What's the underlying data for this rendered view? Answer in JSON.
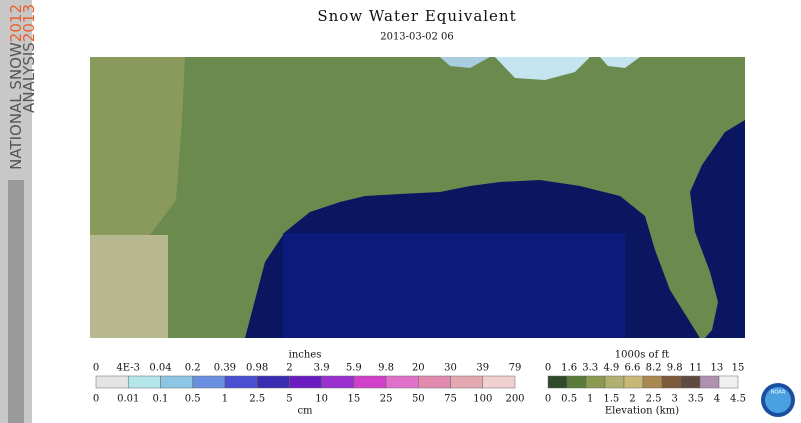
{
  "banner": {
    "line1": "NATIONAL SNOW",
    "year1": "2012",
    "line2": "ANALYSIS",
    "year2": "2013"
  },
  "title": "Snow Water Equivalent",
  "date": "2013-03-02 06",
  "swe_legend": {
    "unit_top": "inches",
    "unit_bottom": "cm",
    "inches": [
      "0",
      "4E-3",
      "0.04",
      "0.2",
      "0.39",
      "0.98",
      "2",
      "3.9",
      "5.9",
      "9.8",
      "20",
      "30",
      "39",
      "79"
    ],
    "cm": [
      "0",
      "0.01",
      "0.1",
      "0.5",
      "1",
      "2.5",
      "5",
      "10",
      "15",
      "25",
      "50",
      "75",
      "100",
      "200"
    ],
    "colors": [
      "#e4e4e4",
      "#b4e6ec",
      "#8cc6e4",
      "#6a8ee0",
      "#4a4ed0",
      "#3a2cb0",
      "#6a1cc0",
      "#9a30d0",
      "#d040c8",
      "#e070c8",
      "#e08ab0",
      "#e4a8b0",
      "#f0d0d0"
    ]
  },
  "elevation_legend": {
    "unit_top": "1000s of ft",
    "title": "Elevation (km)",
    "ft": [
      "0",
      "1.6",
      "3.3",
      "4.9",
      "6.6",
      "8.2",
      "9.8",
      "11",
      "13",
      "15"
    ],
    "km": [
      "0",
      "0.5",
      "1",
      "1.5",
      "2",
      "2.5",
      "3",
      "3.5",
      "4",
      "4.5"
    ],
    "colors": [
      "#2e4a2a",
      "#5a7a3a",
      "#8a9a50",
      "#b0b070",
      "#c8b878",
      "#a88850",
      "#7a5a38",
      "#604a40",
      "#b090b0",
      "#f0f0f0"
    ]
  },
  "logo": "NOAA"
}
